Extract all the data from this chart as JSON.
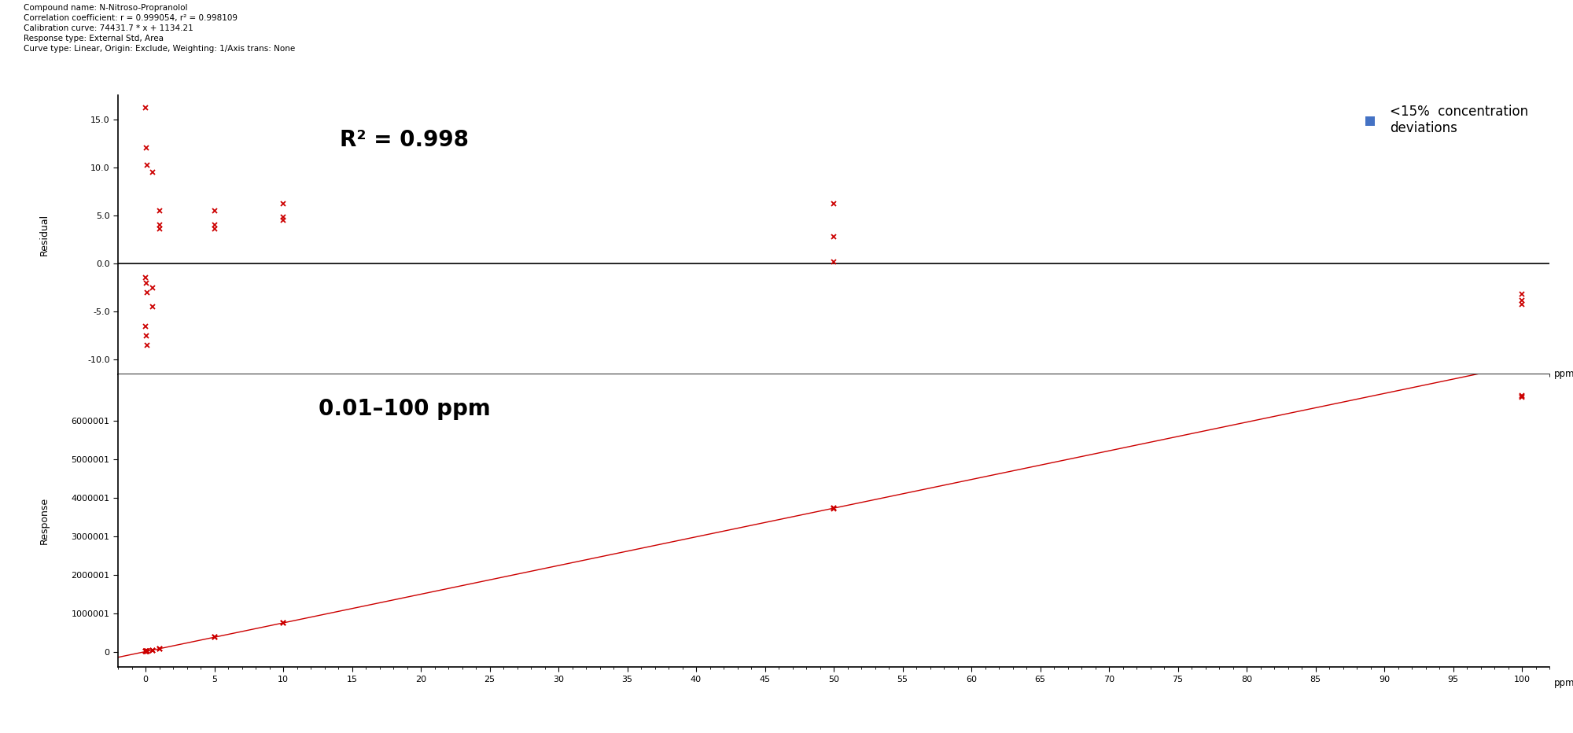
{
  "title_text": "Compound name: N-Nitroso-Propranolol\nCorrelation coefficient: r = 0.999054, r² = 0.998109\nCalibration curve: 74431.7 * x + 1134.21\nResponse type: External Std, Area\nCurve type: Linear, Origin: Exclude, Weighting: 1/Axis trans: None",
  "r2_text": "R² = 0.998",
  "range_text": "0.01–100 ppm",
  "legend_text": "<15%  concentration\ndeviations",
  "slope": 74431.7,
  "intercept": 1134.21,
  "cal_points_x": [
    0.01,
    0.05,
    0.1,
    0.5,
    1.0,
    5.0,
    10.0,
    50.0,
    100.0
  ],
  "cal_points_y_t1": [
    1900,
    4700,
    8600,
    38000,
    76000,
    374000,
    746000,
    3730000,
    6640000
  ],
  "cal_points_y_t2": [
    1500,
    4300,
    8200,
    37000,
    75000,
    372000,
    744000,
    3720000,
    6630000
  ],
  "cal_points_y_t3": [
    1200,
    4100,
    7900,
    36000,
    74000,
    370000,
    742000,
    3700000,
    6610000
  ],
  "residuals_t1": [
    16.2,
    12.0,
    10.2,
    9.5,
    5.5,
    5.5,
    6.2,
    6.2,
    -3.2
  ],
  "residuals_t2": [
    -1.5,
    -2.0,
    -3.0,
    -2.5,
    4.0,
    4.0,
    4.8,
    2.8,
    -3.8
  ],
  "residuals_t3": [
    -6.5,
    -7.5,
    -8.5,
    -4.5,
    3.6,
    3.6,
    4.5,
    0.2,
    -4.2
  ],
  "marker_color": "#cc0000",
  "line_color": "#cc0000",
  "legend_marker_color": "#4472c4",
  "bg_color": "#ffffff",
  "xlabel": "ppm",
  "ylabel_residual": "Residual",
  "ylabel_response": "Response",
  "xlim": [
    -2,
    102
  ],
  "xticks": [
    0,
    5,
    10,
    15,
    20,
    25,
    30,
    35,
    40,
    45,
    50,
    55,
    60,
    65,
    70,
    75,
    80,
    85,
    90,
    95,
    100
  ],
  "ylim_residual": [
    -11.5,
    17.5
  ],
  "yticks_residual": [
    -10.0,
    -5.0,
    0.0,
    5.0,
    10.0,
    15.0
  ],
  "ylim_response": [
    -400000,
    7200000
  ],
  "yticks_response": [
    0,
    1000001,
    2000001,
    3000001,
    4000001,
    5000001,
    6000001
  ],
  "ytick_response_labels": [
    "0",
    "1000001",
    "2000001",
    "3000001",
    "4000001",
    "5000001",
    "6000001"
  ]
}
